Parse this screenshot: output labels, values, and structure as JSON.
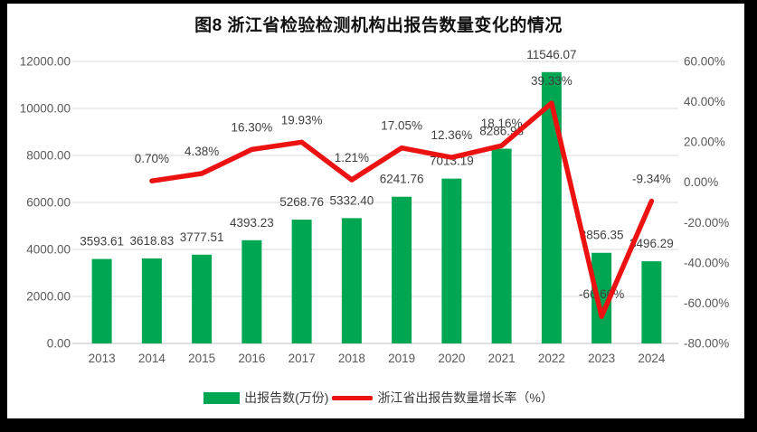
{
  "chart_data": {
    "type": "bar+line",
    "title": "图8 浙江省检验检测机构出报告数量变化的情况",
    "categories": [
      "2013",
      "2014",
      "2015",
      "2016",
      "2017",
      "2018",
      "2019",
      "2020",
      "2021",
      "2022",
      "2023",
      "2024"
    ],
    "series": [
      {
        "name": "出报告数(万份)",
        "type": "bar",
        "axis": "left",
        "color": "#00A651",
        "values": [
          3593.61,
          3618.83,
          3777.51,
          4393.23,
          5268.76,
          5332.4,
          6241.76,
          7013.19,
          8286.98,
          11546.07,
          3856.35,
          3496.29
        ],
        "labels": [
          "3593.61",
          "3618.83",
          "3777.51",
          "4393.23",
          "5268.76",
          "5332.40",
          "6241.76",
          "7013.19",
          "8286.98",
          "11546.07",
          "3856.35",
          "3496.29"
        ]
      },
      {
        "name": "浙江省出报告数量增长率（%）",
        "type": "line",
        "axis": "right",
        "color": "#EC1212",
        "values": [
          null,
          0.7,
          4.38,
          16.3,
          19.93,
          1.21,
          17.05,
          12.36,
          18.16,
          39.33,
          -66.6,
          -9.34
        ],
        "labels": [
          null,
          "0.70%",
          "4.38%",
          "16.30%",
          "19.93%",
          "1.21%",
          "17.05%",
          "12.36%",
          "18.16%",
          "39.33%",
          "-66.60%",
          "-9.34%"
        ]
      }
    ],
    "left_axis": {
      "min": 0,
      "max": 12000,
      "ticks": [
        "12000.00",
        "10000.00",
        "8000.00",
        "6000.00",
        "4000.00",
        "2000.00",
        "0.00"
      ]
    },
    "right_axis": {
      "min": -80,
      "max": 60,
      "ticks": [
        "60.00%",
        "40.00%",
        "20.00%",
        "0.00%",
        "-20.00%",
        "-40.00%",
        "-60.00%",
        "-80.00%"
      ]
    },
    "grid": "horizontal-on",
    "legend_position": "bottom",
    "colors": {
      "grid": "#D9D9D9",
      "axis_line": "#BFBFBF",
      "tick_text": "#595959",
      "data_label_text": "#404040"
    }
  }
}
